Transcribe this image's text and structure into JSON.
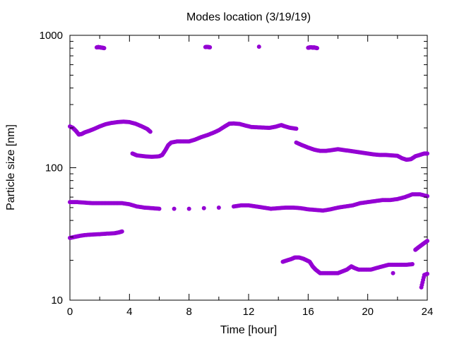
{
  "chart_data": {
    "type": "scatter",
    "title": "Modes location (3/19/19)",
    "xlabel": "Time [hour]",
    "ylabel": "Particle size [nm]",
    "xlim": [
      0,
      24
    ],
    "ylim": [
      10,
      1000
    ],
    "yscale": "log",
    "grid": false,
    "legend": "none",
    "x_ticks": [
      0,
      4,
      8,
      12,
      16,
      20,
      24
    ],
    "x_tick_labels": [
      "0",
      "4",
      "8",
      "12",
      "16",
      "20",
      "24"
    ],
    "y_ticks": [
      10,
      100,
      1000
    ],
    "y_tick_labels": [
      "10",
      "100",
      "1000"
    ],
    "marker_color": "#9400D3",
    "series": [
      {
        "values_note_excluded": true,
        "points": [
          [
            1.8,
            810
          ],
          [
            1.9,
            815
          ],
          [
            2.0,
            812
          ],
          [
            2.1,
            808
          ],
          [
            2.2,
            805
          ],
          [
            2.3,
            800
          ],
          [
            9.1,
            815
          ],
          [
            9.2,
            818
          ],
          [
            9.3,
            815
          ],
          [
            9.4,
            812
          ],
          [
            12.7,
            820
          ],
          [
            16.0,
            805
          ],
          [
            16.1,
            810
          ],
          [
            16.2,
            812
          ],
          [
            16.3,
            808
          ],
          [
            16.4,
            810
          ],
          [
            16.5,
            805
          ],
          [
            16.6,
            800
          ]
        ]
      },
      {
        "points": [
          [
            0.0,
            205
          ],
          [
            0.2,
            200
          ],
          [
            0.4,
            190
          ],
          [
            0.6,
            178
          ],
          [
            0.8,
            180
          ],
          [
            1.0,
            185
          ],
          [
            1.3,
            190
          ],
          [
            1.6,
            196
          ],
          [
            2.0,
            205
          ],
          [
            2.4,
            213
          ],
          [
            2.8,
            218
          ],
          [
            3.2,
            221
          ],
          [
            3.6,
            223
          ],
          [
            4.0,
            221
          ],
          [
            4.4,
            215
          ],
          [
            4.8,
            206
          ],
          [
            5.2,
            196
          ],
          [
            5.4,
            187
          ],
          [
            4.2,
            128
          ],
          [
            4.5,
            124
          ],
          [
            5.0,
            122
          ],
          [
            5.5,
            121
          ],
          [
            6.0,
            122
          ],
          [
            6.2,
            125
          ],
          [
            6.4,
            135
          ],
          [
            6.6,
            148
          ],
          [
            6.8,
            155
          ],
          [
            7.2,
            158
          ],
          [
            7.6,
            158
          ],
          [
            8.0,
            158
          ],
          [
            8.4,
            163
          ],
          [
            8.8,
            170
          ],
          [
            9.2,
            176
          ],
          [
            9.6,
            183
          ],
          [
            10.0,
            192
          ],
          [
            10.4,
            205
          ],
          [
            10.7,
            215
          ],
          [
            11.0,
            216
          ],
          [
            11.4,
            214
          ],
          [
            11.8,
            208
          ],
          [
            12.2,
            203
          ],
          [
            12.6,
            202
          ],
          [
            13.0,
            201
          ],
          [
            13.4,
            200
          ],
          [
            13.8,
            204
          ],
          [
            14.2,
            210
          ],
          [
            14.4,
            206
          ],
          [
            14.8,
            200
          ],
          [
            15.2,
            197
          ],
          [
            15.2,
            155
          ],
          [
            15.6,
            148
          ],
          [
            16.0,
            142
          ],
          [
            16.4,
            137
          ],
          [
            16.8,
            134
          ],
          [
            17.2,
            134
          ],
          [
            17.6,
            136
          ],
          [
            18.0,
            138
          ],
          [
            18.4,
            136
          ],
          [
            18.8,
            134
          ],
          [
            19.2,
            132
          ],
          [
            19.6,
            130
          ],
          [
            20.0,
            128
          ],
          [
            20.4,
            126
          ],
          [
            20.8,
            125
          ],
          [
            21.2,
            125
          ],
          [
            21.6,
            124
          ],
          [
            22.0,
            123
          ],
          [
            22.3,
            118
          ],
          [
            22.6,
            115
          ],
          [
            22.9,
            116
          ],
          [
            23.2,
            122
          ],
          [
            23.5,
            125
          ],
          [
            23.8,
            128
          ],
          [
            24.0,
            128
          ]
        ]
      },
      {
        "points": [
          [
            0.0,
            55
          ],
          [
            0.5,
            55
          ],
          [
            1.0,
            54.5
          ],
          [
            1.5,
            54
          ],
          [
            2.0,
            54
          ],
          [
            2.5,
            54
          ],
          [
            3.0,
            54
          ],
          [
            3.5,
            54
          ],
          [
            4.0,
            53
          ],
          [
            4.5,
            51
          ],
          [
            5.0,
            50
          ],
          [
            5.5,
            49.5
          ],
          [
            6.0,
            49
          ],
          [
            7.0,
            49
          ],
          [
            8.0,
            49
          ],
          [
            9.0,
            49.5
          ],
          [
            10.0,
            50
          ],
          [
            11.0,
            51
          ],
          [
            11.5,
            52
          ],
          [
            12.0,
            52
          ],
          [
            12.5,
            51
          ],
          [
            13.0,
            50
          ],
          [
            13.5,
            49
          ],
          [
            14.0,
            49.5
          ],
          [
            14.5,
            50
          ],
          [
            15.0,
            50
          ],
          [
            15.5,
            49.5
          ],
          [
            16.0,
            48.5
          ],
          [
            16.5,
            48
          ],
          [
            17.0,
            47.5
          ],
          [
            17.5,
            48.5
          ],
          [
            18.0,
            50
          ],
          [
            18.5,
            51
          ],
          [
            19.0,
            52
          ],
          [
            19.5,
            54
          ],
          [
            20.0,
            55
          ],
          [
            20.5,
            56
          ],
          [
            21.0,
            57
          ],
          [
            21.5,
            57
          ],
          [
            22.0,
            58
          ],
          [
            22.5,
            60
          ],
          [
            23.0,
            63
          ],
          [
            23.5,
            63
          ],
          [
            24.0,
            61
          ]
        ]
      },
      {
        "points": [
          [
            0.0,
            29.5
          ],
          [
            0.3,
            30
          ],
          [
            0.6,
            30.5
          ],
          [
            1.0,
            31
          ],
          [
            1.5,
            31.3
          ],
          [
            2.0,
            31.5
          ],
          [
            2.5,
            31.8
          ],
          [
            3.0,
            32
          ],
          [
            3.3,
            32.5
          ],
          [
            3.5,
            33
          ]
        ]
      },
      {
        "points": [
          [
            14.3,
            19.5
          ],
          [
            14.6,
            20
          ],
          [
            14.9,
            20.5
          ],
          [
            15.1,
            21
          ],
          [
            15.4,
            21
          ],
          [
            15.7,
            20.5
          ],
          [
            15.9,
            20
          ],
          [
            16.1,
            19.5
          ],
          [
            16.3,
            18
          ],
          [
            16.5,
            17
          ],
          [
            16.8,
            16
          ],
          [
            17.2,
            16
          ],
          [
            17.6,
            16
          ],
          [
            18.0,
            16
          ],
          [
            18.3,
            16.5
          ],
          [
            18.6,
            17
          ],
          [
            18.9,
            18
          ],
          [
            19.1,
            17.5
          ],
          [
            19.4,
            17
          ],
          [
            19.8,
            17
          ],
          [
            20.2,
            17
          ],
          [
            20.6,
            17.5
          ],
          [
            21.0,
            18
          ],
          [
            21.4,
            18.5
          ],
          [
            21.8,
            18.5
          ],
          [
            22.2,
            18.5
          ],
          [
            22.6,
            18.5
          ],
          [
            23.0,
            18.7
          ],
          [
            21.7,
            16
          ],
          [
            23.2,
            24
          ],
          [
            23.4,
            25
          ],
          [
            23.6,
            26
          ],
          [
            23.8,
            27
          ],
          [
            24.0,
            28
          ],
          [
            23.6,
            12.5
          ],
          [
            23.8,
            15.5
          ],
          [
            24.0,
            15.8
          ]
        ]
      }
    ]
  }
}
